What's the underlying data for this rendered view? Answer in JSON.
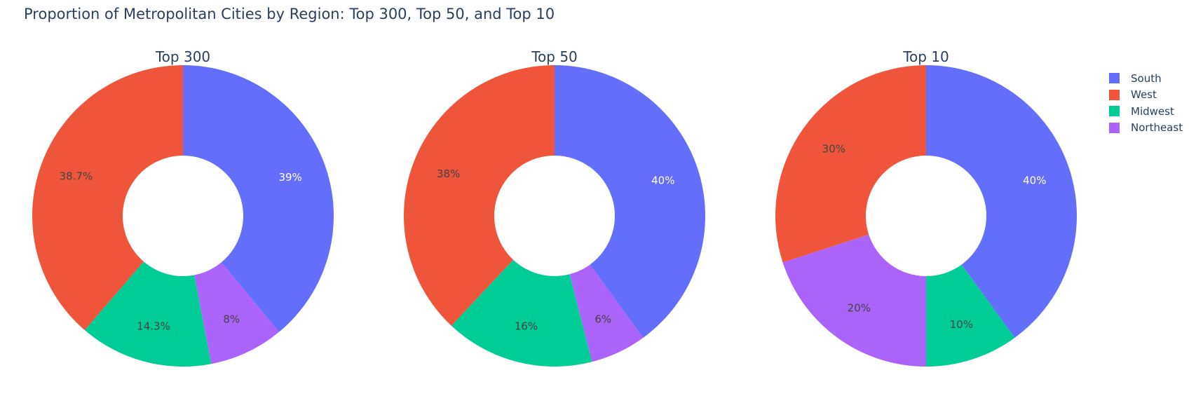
{
  "title": "Proportion of Metropolitan Cities by Region: Top 300, Top 50, and Top 10",
  "colors": {
    "South": "#636efa",
    "West": "#ef553b",
    "Midwest": "#00cc96",
    "Northeast": "#ab63fa"
  },
  "legend": [
    {
      "label": "South"
    },
    {
      "label": "West"
    },
    {
      "label": "Midwest"
    },
    {
      "label": "Northeast"
    }
  ],
  "chart_data": [
    {
      "type": "pie",
      "title": "Top 300",
      "hole": true,
      "slices": [
        {
          "label": "South",
          "value": 39.0,
          "text": "39%"
        },
        {
          "label": "Northeast",
          "value": 8.0,
          "text": "8%"
        },
        {
          "label": "Midwest",
          "value": 14.3,
          "text": "14.3%"
        },
        {
          "label": "West",
          "value": 38.7,
          "text": "38.7%"
        }
      ]
    },
    {
      "type": "pie",
      "title": "Top 50",
      "hole": true,
      "slices": [
        {
          "label": "South",
          "value": 40,
          "text": "40%"
        },
        {
          "label": "Northeast",
          "value": 6,
          "text": "6%"
        },
        {
          "label": "Midwest",
          "value": 16,
          "text": "16%"
        },
        {
          "label": "West",
          "value": 38,
          "text": "38%"
        }
      ]
    },
    {
      "type": "pie",
      "title": "Top 10",
      "hole": true,
      "slices": [
        {
          "label": "South",
          "value": 40,
          "text": "40%"
        },
        {
          "label": "Midwest",
          "value": 10,
          "text": "10%"
        },
        {
          "label": "Northeast",
          "value": 20,
          "text": "20%"
        },
        {
          "label": "West",
          "value": 30,
          "text": "30%"
        }
      ]
    }
  ]
}
